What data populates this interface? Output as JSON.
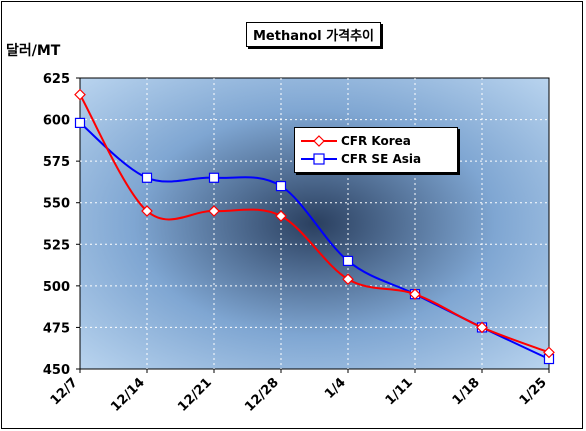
{
  "chart_data": {
    "type": "line",
    "title": "Methanol 가격추이",
    "ylabel": "달러/MT",
    "xlabel": "",
    "categories": [
      "12/7",
      "12/14",
      "12/21",
      "12/28",
      "1/4",
      "1/11",
      "1/18",
      "1/25"
    ],
    "ylim": [
      450,
      625
    ],
    "yticks": [
      450,
      475,
      500,
      525,
      550,
      575,
      600,
      625
    ],
    "grid": true,
    "legend_position": "upper-right",
    "series": [
      {
        "name": "CFR Korea",
        "color": "#ff0000",
        "marker": "diamond",
        "values": [
          615,
          545,
          545,
          542,
          504,
          495,
          475,
          460
        ]
      },
      {
        "name": "CFR SE Asia",
        "color": "#0000ff",
        "marker": "square",
        "values": [
          598,
          565,
          565,
          560,
          515,
          495,
          475,
          456
        ]
      }
    ]
  }
}
